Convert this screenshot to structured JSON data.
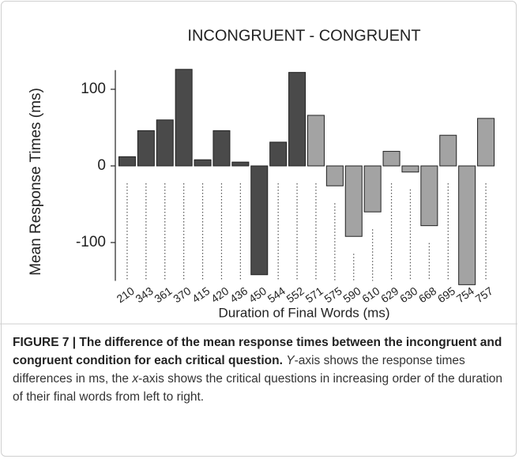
{
  "chart_data": {
    "type": "bar",
    "title": "INCONGRUENT - CONGRUENT",
    "y_label": "Mean Response Times (ms)",
    "x_label": "Duration of Final Words (ms)",
    "categories": [
      "210",
      "343",
      "361",
      "370",
      "415",
      "420",
      "436",
      "450",
      "544",
      "552",
      "571",
      "575",
      "590",
      "610",
      "629",
      "630",
      "668",
      "695",
      "754",
      "757"
    ],
    "values": [
      12,
      46,
      60,
      126,
      8,
      46,
      5,
      -142,
      31,
      122,
      66,
      -26,
      -92,
      -60,
      19,
      -8,
      -78,
      40,
      -155,
      62
    ],
    "colors": [
      "#4a4a4a",
      "#4a4a4a",
      "#4a4a4a",
      "#4a4a4a",
      "#4a4a4a",
      "#4a4a4a",
      "#4a4a4a",
      "#4a4a4a",
      "#4a4a4a",
      "#4a4a4a",
      "#a3a3a3",
      "#a3a3a3",
      "#a3a3a3",
      "#a3a3a3",
      "#a3a3a3",
      "#a3a3a3",
      "#a3a3a3",
      "#a3a3a3",
      "#a3a3a3",
      "#a3a3a3"
    ],
    "ylim": [
      -150,
      125
    ],
    "yticks": [
      100,
      0,
      -100
    ],
    "grid": false
  },
  "caption": {
    "bold": "FIGURE 7 | The difference of the mean response times between the incongruent and congruent condition for each critical question.",
    "italic_1": "Y",
    "text_1": "-axis shows the response times differences in ms, the ",
    "italic_2": "x",
    "text_2": "-axis shows the critical questions in increasing order of the duration of their final words from left to right."
  }
}
